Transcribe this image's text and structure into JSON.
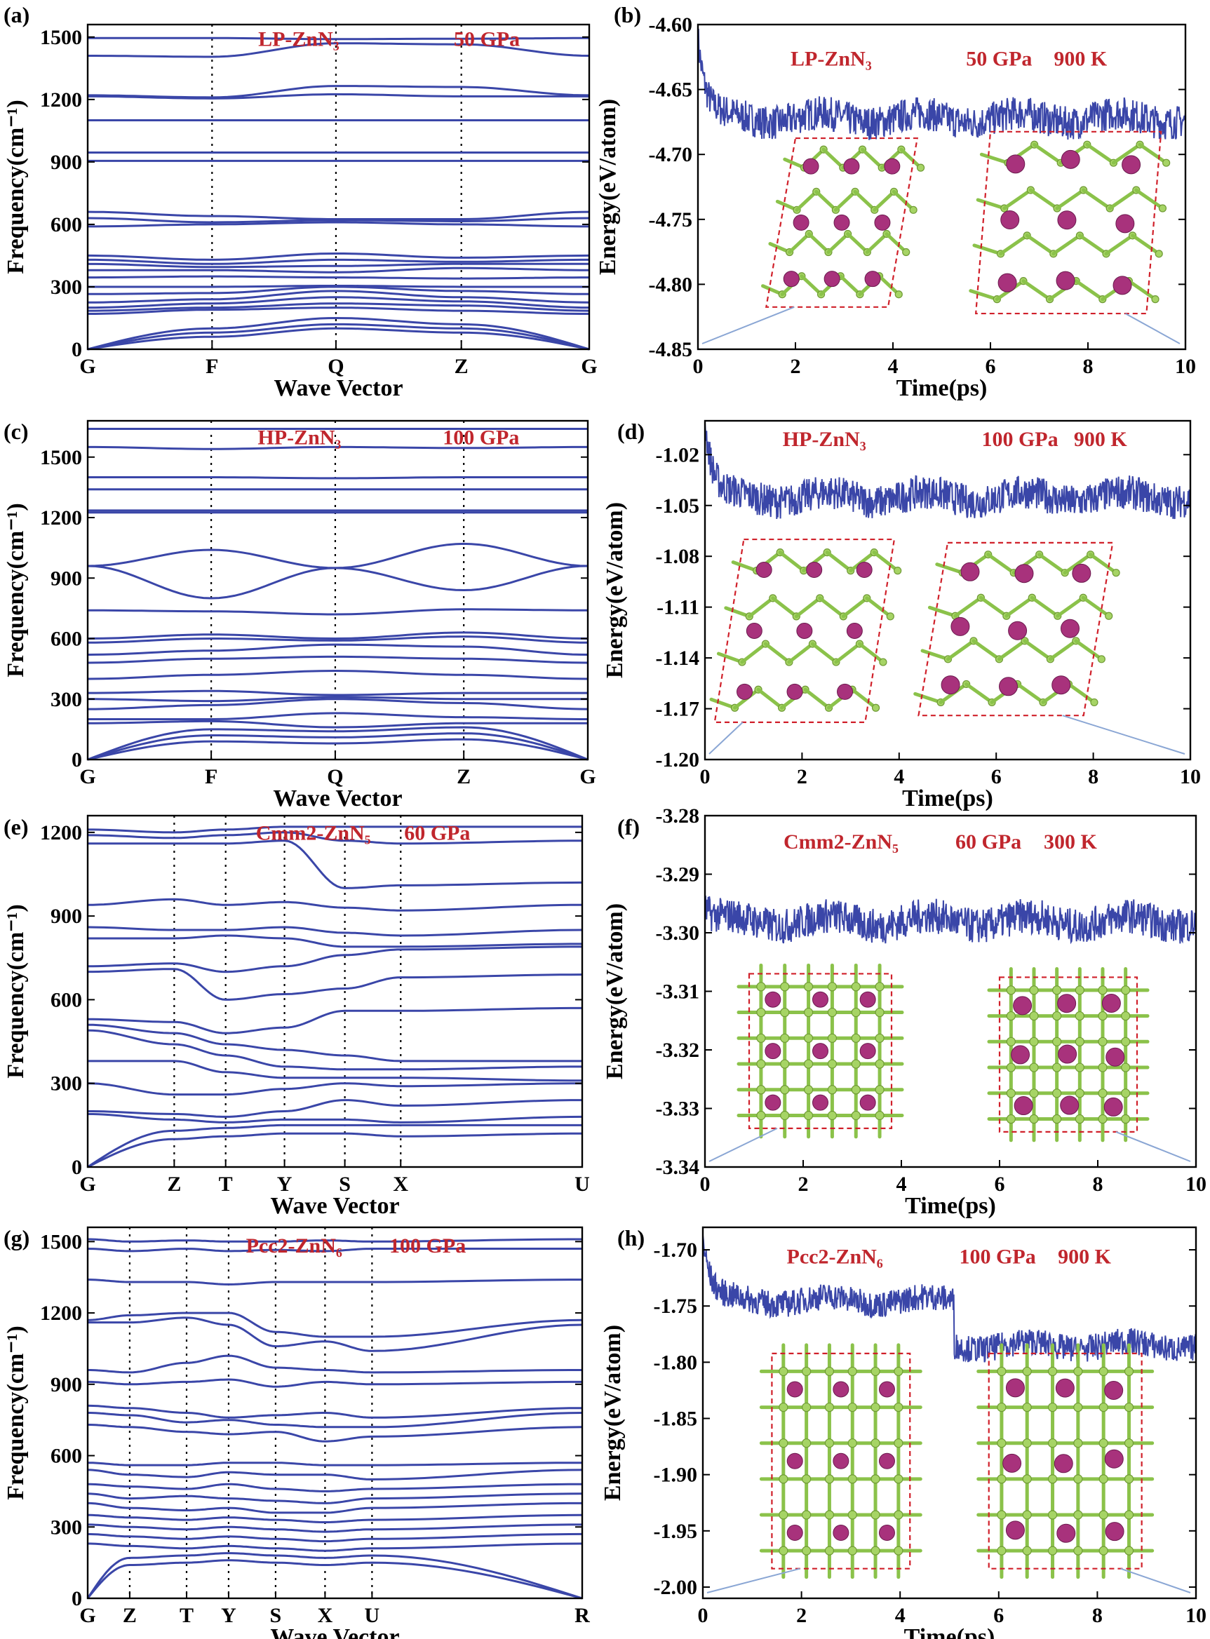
{
  "colors": {
    "band": "#3a46a8",
    "annotation": "#c0262d",
    "nitrogen": "#a6d465",
    "zinc": "#a8327c",
    "cell": "#d0202a"
  },
  "chart_data": [
    {
      "id": "a",
      "panel_label": "(a)",
      "type": "line",
      "title": "",
      "xlabel": "Wave Vector",
      "ylabel": "Frequency(cm⁻¹)",
      "annotations": [
        "LP-ZnN₃",
        "50 GPa"
      ],
      "xticks": [
        "G",
        "F",
        "Q",
        "Z",
        "G"
      ],
      "ylim": [
        0,
        1560
      ],
      "yticks": [
        0,
        300,
        600,
        900,
        1200,
        1500
      ],
      "grid": false,
      "series_desc": "phonon dispersion bands",
      "bands": [
        [
          1495,
          1495,
          1490,
          1492,
          1495
        ],
        [
          1410,
          1405,
          1470,
          1465,
          1410
        ],
        [
          1220,
          1210,
          1265,
          1260,
          1220
        ],
        [
          1215,
          1205,
          1225,
          1215,
          1215
        ],
        [
          1100,
          1100,
          1100,
          1100,
          1100
        ],
        [
          945,
          945,
          945,
          945,
          945
        ],
        [
          905,
          905,
          905,
          905,
          905
        ],
        [
          660,
          640,
          625,
          625,
          660
        ],
        [
          630,
          610,
          620,
          615,
          630
        ],
        [
          590,
          600,
          610,
          600,
          590
        ],
        [
          450,
          430,
          460,
          440,
          450
        ],
        [
          430,
          410,
          430,
          420,
          430
        ],
        [
          410,
          395,
          400,
          410,
          410
        ],
        [
          380,
          380,
          370,
          390,
          380
        ],
        [
          345,
          350,
          345,
          340,
          345
        ],
        [
          300,
          300,
          305,
          300,
          300
        ],
        [
          265,
          270,
          300,
          280,
          265
        ],
        [
          225,
          240,
          280,
          250,
          225
        ],
        [
          200,
          220,
          250,
          230,
          200
        ],
        [
          185,
          200,
          220,
          210,
          185
        ],
        [
          170,
          190,
          200,
          185,
          170
        ],
        [
          0,
          100,
          150,
          120,
          0
        ],
        [
          0,
          80,
          120,
          100,
          0
        ],
        [
          0,
          60,
          100,
          80,
          0
        ]
      ]
    },
    {
      "id": "b",
      "panel_label": "(b)",
      "type": "line",
      "title": "",
      "xlabel": "Time(ps)",
      "ylabel": "Energy(eV/atom)",
      "annotations": [
        "LP-ZnN₃",
        "50 GPa",
        "900 K"
      ],
      "xlim": [
        0,
        10
      ],
      "xticks": [
        0,
        2,
        4,
        6,
        8,
        10
      ],
      "ylim": [
        -4.85,
        -4.6
      ],
      "yticks": [
        -4.6,
        -4.65,
        -4.7,
        -4.75,
        -4.8,
        -4.85
      ],
      "series": [
        {
          "start": -4.61,
          "mean": -4.672,
          "noise": 0.013,
          "segments": [
            [
              0,
              -4.672
            ]
          ]
        }
      ]
    },
    {
      "id": "c",
      "panel_label": "(c)",
      "type": "line",
      "title": "",
      "xlabel": "Wave Vector",
      "ylabel": "Frequency(cm⁻¹)",
      "annotations": [
        "HP-ZnN₃",
        "100 GPa"
      ],
      "xticks": [
        "G",
        "F",
        "Q",
        "Z",
        "G"
      ],
      "ylim": [
        0,
        1680
      ],
      "yticks": [
        0,
        300,
        600,
        900,
        1200,
        1500
      ],
      "grid": false,
      "bands": [
        [
          1640,
          1640,
          1640,
          1640,
          1640
        ],
        [
          1550,
          1540,
          1550,
          1545,
          1550
        ],
        [
          1400,
          1400,
          1395,
          1400,
          1400
        ],
        [
          1340,
          1340,
          1340,
          1340,
          1340
        ],
        [
          1235,
          1235,
          1235,
          1235,
          1235
        ],
        [
          1225,
          1225,
          1225,
          1225,
          1225
        ],
        [
          960,
          1040,
          950,
          1070,
          960
        ],
        [
          960,
          800,
          950,
          840,
          960
        ],
        [
          740,
          735,
          720,
          745,
          740
        ],
        [
          600,
          620,
          600,
          630,
          600
        ],
        [
          580,
          600,
          590,
          610,
          580
        ],
        [
          520,
          540,
          570,
          560,
          520
        ],
        [
          480,
          500,
          510,
          500,
          480
        ],
        [
          400,
          420,
          440,
          420,
          400
        ],
        [
          330,
          340,
          320,
          330,
          330
        ],
        [
          300,
          290,
          310,
          300,
          300
        ],
        [
          250,
          270,
          300,
          280,
          250
        ],
        [
          200,
          200,
          230,
          210,
          200
        ],
        [
          180,
          190,
          160,
          180,
          180
        ],
        [
          0,
          150,
          140,
          160,
          0
        ],
        [
          0,
          120,
          110,
          130,
          0
        ],
        [
          0,
          90,
          80,
          100,
          0
        ]
      ]
    },
    {
      "id": "d",
      "panel_label": "(d)",
      "type": "line",
      "title": "",
      "xlabel": "Time(ps)",
      "ylabel": "Energy(eV/atom)",
      "annotations": [
        "HP-ZnN₃",
        "100 GPa",
        "900 K"
      ],
      "xlim": [
        0,
        10
      ],
      "xticks": [
        0,
        2,
        4,
        6,
        8,
        10
      ],
      "ylim": [
        -1.2,
        -1.0
      ],
      "yticks": [
        -1.02,
        -1.05,
        -1.08,
        -1.11,
        -1.14,
        -1.17,
        -1.2
      ],
      "series": [
        {
          "start": -1.0,
          "mean": -1.045,
          "noise": 0.01,
          "segments": [
            [
              0,
              -1.045
            ]
          ]
        }
      ]
    },
    {
      "id": "e",
      "panel_label": "(e)",
      "type": "line",
      "title": "",
      "xlabel": "Wave Vector",
      "ylabel": "Frequency(cm⁻¹)",
      "annotations": [
        "Cmm2-ZnN₅",
        "60 GPa"
      ],
      "xticks": [
        "G",
        "Z",
        "T",
        "Y",
        "S",
        "X",
        "U"
      ],
      "ylim": [
        0,
        1260
      ],
      "yticks": [
        0,
        300,
        600,
        900,
        1200
      ],
      "grid": false,
      "bands": [
        [
          1210,
          1200,
          1210,
          1220,
          1220,
          1220,
          1220
        ],
        [
          1190,
          1180,
          1190,
          1200,
          1170,
          1160,
          1170
        ],
        [
          1160,
          1160,
          1160,
          1170,
          1000,
          1010,
          1020
        ],
        [
          940,
          960,
          940,
          950,
          930,
          920,
          940
        ],
        [
          860,
          850,
          850,
          860,
          840,
          830,
          850
        ],
        [
          820,
          820,
          830,
          820,
          790,
          790,
          800
        ],
        [
          720,
          730,
          700,
          720,
          760,
          780,
          790
        ],
        [
          700,
          710,
          600,
          620,
          640,
          680,
          690
        ],
        [
          530,
          520,
          480,
          500,
          560,
          560,
          570
        ],
        [
          510,
          480,
          440,
          420,
          400,
          380,
          380
        ],
        [
          490,
          440,
          400,
          360,
          350,
          350,
          360
        ],
        [
          380,
          380,
          340,
          320,
          320,
          320,
          310
        ],
        [
          300,
          260,
          260,
          280,
          300,
          290,
          300
        ],
        [
          200,
          190,
          180,
          200,
          240,
          220,
          240
        ],
        [
          190,
          170,
          160,
          170,
          170,
          160,
          180
        ],
        [
          0,
          130,
          140,
          150,
          150,
          150,
          150
        ],
        [
          0,
          100,
          110,
          120,
          120,
          110,
          120
        ]
      ]
    },
    {
      "id": "f",
      "panel_label": "(f)",
      "type": "line",
      "title": "",
      "xlabel": "Time(ps)",
      "ylabel": "Energy(eV/atom)",
      "annotations": [
        "Cmm2-ZnN₅",
        "60 GPa",
        "300 K"
      ],
      "xlim": [
        0,
        10
      ],
      "xticks": [
        0,
        2,
        4,
        6,
        8,
        10
      ],
      "ylim": [
        -3.34,
        -3.28
      ],
      "yticks": [
        -3.28,
        -3.29,
        -3.3,
        -3.31,
        -3.32,
        -3.33,
        -3.34
      ],
      "series": [
        {
          "start": -3.296,
          "mean": -3.298,
          "noise": 0.003,
          "segments": [
            [
              0,
              -3.298
            ]
          ]
        }
      ]
    },
    {
      "id": "g",
      "panel_label": "(g)",
      "type": "line",
      "title": "",
      "xlabel": "Wave Vector",
      "ylabel": "Frequency(cm⁻¹)",
      "annotations": [
        "Pcc2-ZnN₆",
        "100 GPa"
      ],
      "xticks": [
        "G",
        "Z",
        "T",
        "Y",
        "S",
        "X",
        "U",
        "R"
      ],
      "ylim": [
        0,
        1560
      ],
      "yticks": [
        0,
        300,
        600,
        900,
        1200,
        1500
      ],
      "grid": false,
      "bands": [
        [
          1510,
          1500,
          1505,
          1500,
          1500,
          1505,
          1500,
          1510
        ],
        [
          1470,
          1460,
          1470,
          1460,
          1465,
          1460,
          1470,
          1470
        ],
        [
          1340,
          1330,
          1330,
          1320,
          1330,
          1330,
          1330,
          1340
        ],
        [
          1170,
          1190,
          1200,
          1200,
          1120,
          1100,
          1100,
          1170
        ],
        [
          1160,
          1160,
          1180,
          1150,
          1060,
          1080,
          1040,
          1150
        ],
        [
          960,
          950,
          990,
          1020,
          970,
          960,
          950,
          960
        ],
        [
          910,
          900,
          910,
          920,
          890,
          910,
          900,
          910
        ],
        [
          810,
          800,
          780,
          760,
          770,
          780,
          760,
          800
        ],
        [
          780,
          770,
          740,
          750,
          730,
          720,
          720,
          780
        ],
        [
          730,
          720,
          700,
          690,
          700,
          660,
          680,
          720
        ],
        [
          570,
          560,
          560,
          570,
          570,
          560,
          560,
          570
        ],
        [
          540,
          520,
          510,
          530,
          520,
          520,
          500,
          540
        ],
        [
          480,
          470,
          460,
          480,
          460,
          450,
          460,
          480
        ],
        [
          440,
          420,
          430,
          420,
          410,
          400,
          420,
          440
        ],
        [
          400,
          380,
          370,
          380,
          360,
          360,
          380,
          400
        ],
        [
          350,
          340,
          330,
          340,
          330,
          320,
          330,
          350
        ],
        [
          310,
          300,
          290,
          300,
          290,
          280,
          290,
          310
        ],
        [
          270,
          260,
          250,
          260,
          250,
          240,
          250,
          270
        ],
        [
          230,
          220,
          210,
          220,
          210,
          200,
          210,
          230
        ],
        [
          0,
          170,
          180,
          190,
          180,
          170,
          180,
          0
        ],
        [
          0,
          140,
          150,
          160,
          150,
          140,
          150,
          0
        ]
      ]
    },
    {
      "id": "h",
      "panel_label": "(h)",
      "type": "line",
      "title": "",
      "xlabel": "Time(ps)",
      "ylabel": "Energy(eV/atom)",
      "annotations": [
        "Pcc2-ZnN₆",
        "100 GPa",
        "900 K"
      ],
      "xlim": [
        0,
        10
      ],
      "xticks": [
        0,
        2,
        4,
        6,
        8,
        10
      ],
      "ylim": [
        -2.01,
        -1.68
      ],
      "yticks": [
        -1.7,
        -1.75,
        -1.8,
        -1.85,
        -1.9,
        -1.95,
        -2.0
      ],
      "series": [
        {
          "start": -1.69,
          "mean": -1.745,
          "noise": 0.012,
          "segments": [
            [
              0,
              -1.745
            ],
            [
              5.1,
              -1.785
            ]
          ]
        }
      ]
    }
  ]
}
